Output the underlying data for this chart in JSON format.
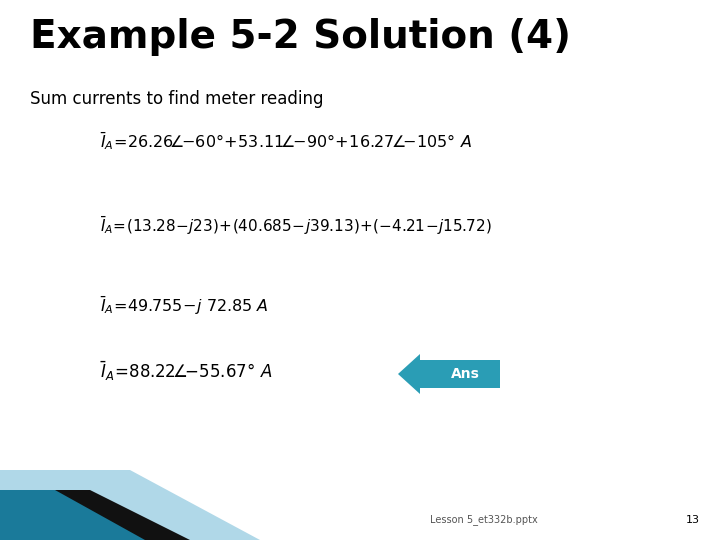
{
  "title": "Example 5-2 Solution (4)",
  "subtitle": "Sum currents to find meter reading",
  "bg_color": "#ffffff",
  "title_color": "#000000",
  "subtitle_color": "#000000",
  "title_fontsize": 28,
  "subtitle_fontsize": 12,
  "footer_text": "Lesson 5_et332b.pptx",
  "footer_page": "13",
  "ans_color": "#2a9db5",
  "ans_text_color": "#ffffff",
  "decor_teal": "#1a7a9a",
  "decor_light": "#b0d8e8",
  "decor_black": "#111111"
}
